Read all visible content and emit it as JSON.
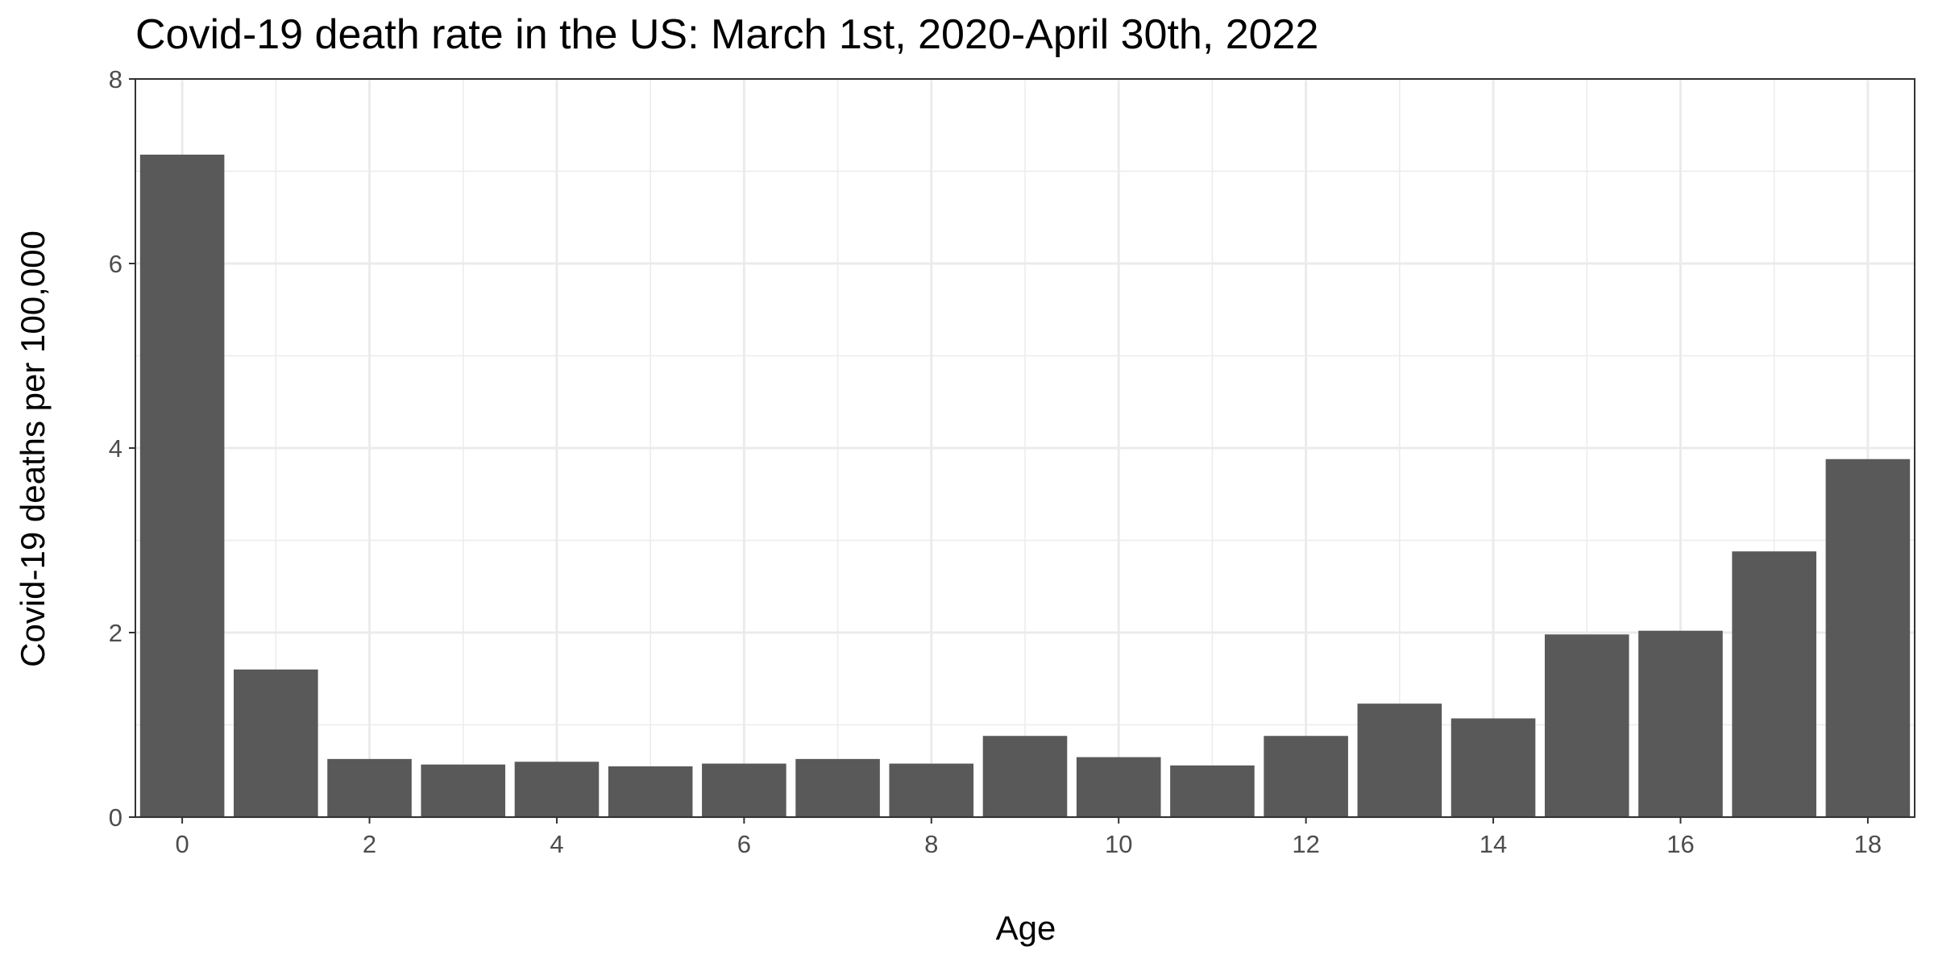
{
  "chart_data": {
    "type": "bar",
    "title": "Covid-19 death rate in the US: March 1st, 2020-April 30th, 2022",
    "xlabel": "Age",
    "ylabel": "Covid-19 deaths per 100,000",
    "x": [
      0,
      1,
      2,
      3,
      4,
      5,
      6,
      7,
      8,
      9,
      10,
      11,
      12,
      13,
      14,
      15,
      16,
      17,
      18
    ],
    "values": [
      7.18,
      1.6,
      0.63,
      0.57,
      0.6,
      0.55,
      0.58,
      0.63,
      0.58,
      0.88,
      0.65,
      0.56,
      0.88,
      1.23,
      1.07,
      1.98,
      2.02,
      2.88,
      3.88
    ],
    "xlim": [
      -0.5,
      18.5
    ],
    "ylim": [
      0,
      8
    ],
    "x_ticks": [
      0,
      2,
      4,
      6,
      8,
      10,
      12,
      14,
      16,
      18
    ],
    "y_ticks": [
      0,
      2,
      4,
      6,
      8
    ],
    "grid": true,
    "legend": "none",
    "bar_color": "#595959",
    "grid_color": "#ebebeb",
    "panel_border_color": "#333333"
  }
}
